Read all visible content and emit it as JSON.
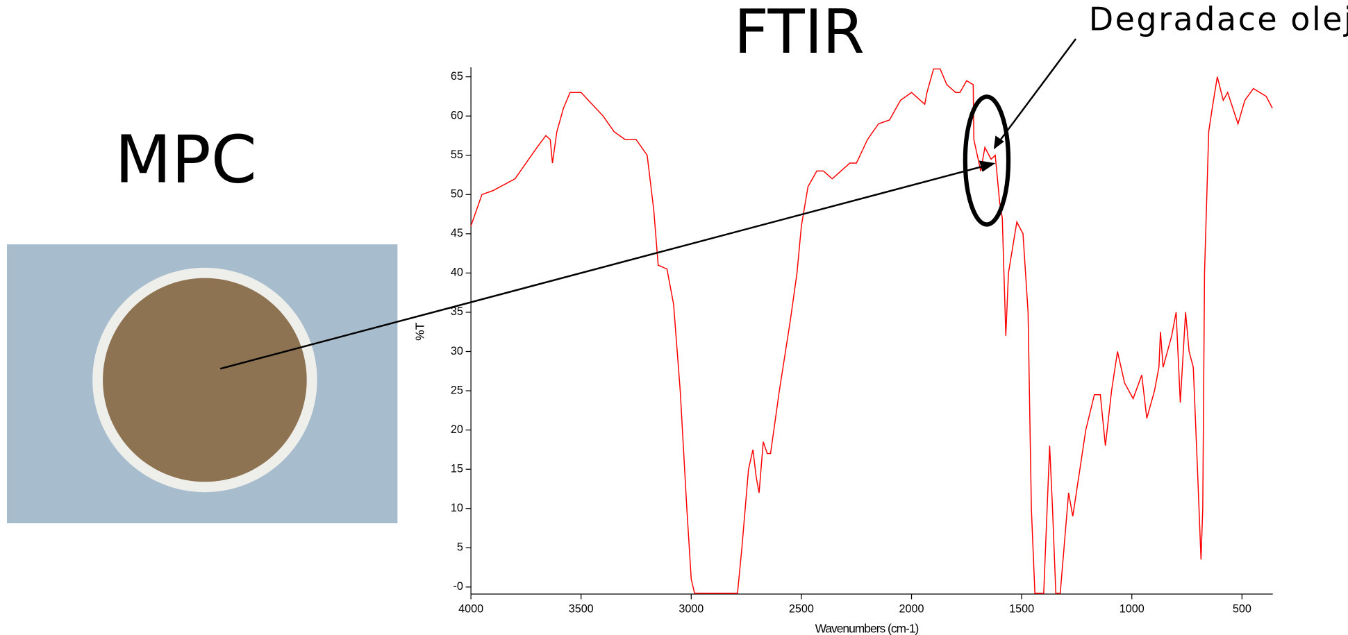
{
  "photo": {
    "label": "MPC"
  },
  "chart_data": {
    "type": "line",
    "title": "FTIR",
    "annotation": "Degradace oleje",
    "x_label": "Wavenumbers (cm-1)",
    "y_label": "%T",
    "color": "#ff0000",
    "xlim": [
      4000,
      360
    ],
    "ylim": [
      -0.9,
      66.2
    ],
    "xticks": [
      4000,
      3500,
      3000,
      2500,
      2000,
      1500,
      1000,
      500
    ],
    "yticks": [
      {
        "value": 0,
        "label": "-0"
      },
      5,
      10,
      15,
      20,
      25,
      30,
      35,
      40,
      45,
      50,
      55,
      60,
      65
    ],
    "x": [
      4000,
      3950,
      3900,
      3800,
      3700,
      3660,
      3640,
      3630,
      3610,
      3580,
      3550,
      3500,
      3450,
      3400,
      3350,
      3300,
      3250,
      3200,
      3170,
      3150,
      3110,
      3080,
      3050,
      3020,
      3000,
      2985,
      2790,
      2770,
      2740,
      2720,
      2705,
      2692,
      2673,
      2655,
      2640,
      2600,
      2550,
      2520,
      2500,
      2470,
      2430,
      2400,
      2360,
      2320,
      2280,
      2250,
      2200,
      2150,
      2100,
      2050,
      2000,
      1960,
      1940,
      1930,
      1900,
      1870,
      1840,
      1800,
      1780,
      1750,
      1720,
      1717,
      1686,
      1667,
      1639,
      1620,
      1600,
      1588,
      1572,
      1560,
      1522,
      1494,
      1471,
      1456,
      1440,
      1400,
      1373,
      1360,
      1345,
      1325,
      1287,
      1268,
      1209,
      1170,
      1143,
      1120,
      1092,
      1065,
      1033,
      994,
      955,
      932,
      897,
      877,
      870,
      858,
      819,
      799,
      780,
      756,
      740,
      721,
      702,
      686,
      678,
      670,
      651,
      635,
      612,
      585,
      565,
      518,
      487,
      448,
      390,
      362
    ],
    "values": [
      46,
      50,
      50.5,
      52,
      56,
      57.5,
      57,
      54,
      58,
      61,
      63,
      63,
      61.5,
      60,
      58,
      57,
      57,
      55,
      48,
      41,
      40.5,
      36,
      25,
      10,
      1,
      -0.8,
      -0.8,
      5,
      15,
      17.5,
      14,
      12,
      18.5,
      17,
      17,
      25,
      34,
      40,
      46,
      51,
      53,
      53,
      52,
      53,
      54,
      54,
      57,
      59,
      59.5,
      62,
      63,
      62,
      61.5,
      63,
      66,
      66,
      64,
      63,
      63,
      64.5,
      64,
      57,
      53,
      56,
      54.5,
      55,
      49,
      47,
      32,
      40,
      46.5,
      45,
      35,
      10,
      -0.8,
      -0.8,
      18,
      10,
      -0.8,
      -0.8,
      12,
      9,
      20,
      24.5,
      24.5,
      18,
      25,
      30,
      26,
      24,
      27,
      21.5,
      25,
      28,
      32.5,
      28,
      32,
      35,
      23.5,
      35,
      30,
      28,
      15,
      3.5,
      10,
      40,
      58,
      61,
      65,
      62,
      63,
      59,
      62,
      63.5,
      62.5,
      61
    ]
  }
}
